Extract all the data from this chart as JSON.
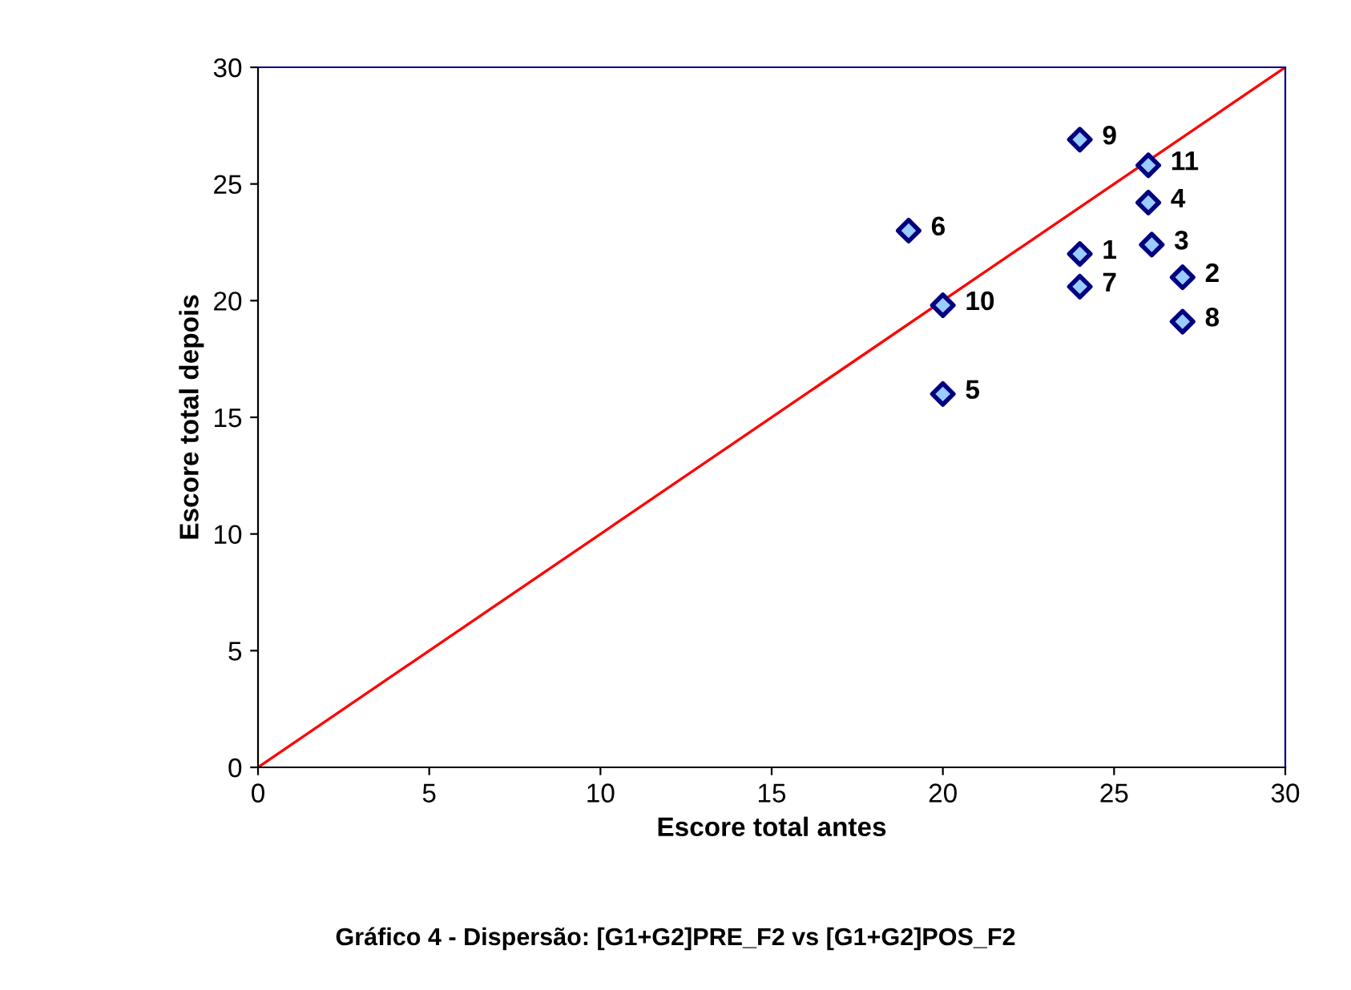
{
  "chart_data": {
    "type": "scatter",
    "xlabel": "Escore total antes",
    "ylabel": "Escore total depois",
    "xlim": [
      0,
      30
    ],
    "ylim": [
      0,
      30
    ],
    "xticks": [
      0,
      5,
      10,
      15,
      20,
      25,
      30
    ],
    "yticks": [
      0,
      5,
      10,
      15,
      20,
      25,
      30
    ],
    "grid": false,
    "legend": false,
    "annotations": [
      "Gráfico 4 - Dispersão: [G1+G2]PRE_F2 vs [G1+G2]POS_F2",
      {
        "text": "1",
        "x": 24,
        "y": 22
      },
      {
        "text": "2",
        "x": 27,
        "y": 21
      },
      {
        "text": "3",
        "x": 26.1,
        "y": 22.4
      },
      {
        "text": "4",
        "x": 26,
        "y": 24.2
      },
      {
        "text": "5",
        "x": 20,
        "y": 16
      },
      {
        "text": "6",
        "x": 19,
        "y": 23
      },
      {
        "text": "7",
        "x": 24,
        "y": 20.6
      },
      {
        "text": "8",
        "x": 27,
        "y": 19.1
      },
      {
        "text": "9",
        "x": 24,
        "y": 26.9
      },
      {
        "text": "10",
        "x": 20,
        "y": 19.8
      },
      {
        "text": "11",
        "x": 26,
        "y": 25.8
      }
    ],
    "series": [
      {
        "marker": "diamond",
        "color": "#000080",
        "x": [
          24,
          27,
          26.1,
          26,
          20,
          19,
          24,
          27,
          24,
          20,
          26
        ],
        "values": [
          22,
          21,
          22.4,
          24.2,
          16,
          23,
          20.6,
          19.1,
          26.9,
          19.8,
          25.8
        ]
      },
      {
        "type": "line",
        "marker": "none",
        "color": "#ff0000",
        "x": [
          0,
          30
        ],
        "values": [
          0,
          30
        ]
      }
    ]
  }
}
